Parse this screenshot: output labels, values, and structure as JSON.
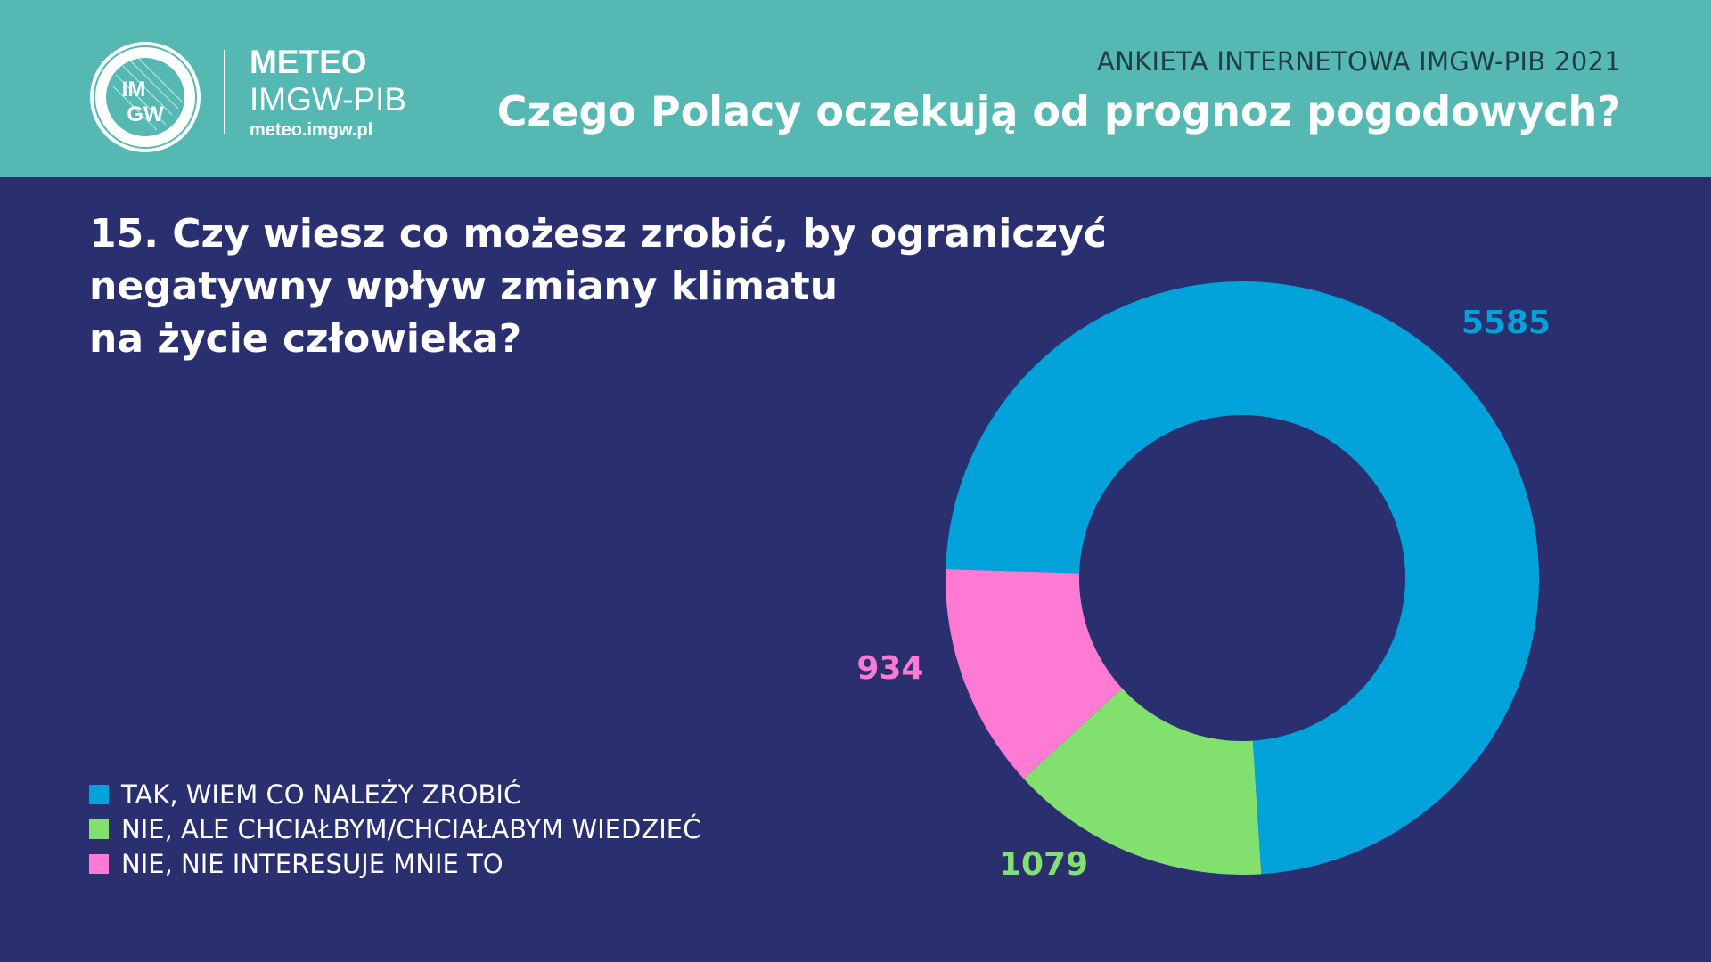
{
  "header": {
    "brand_title": "METEO",
    "brand_subtitle": "IMGW-PIB",
    "brand_url": "meteo.imgw.pl",
    "logo_text_top": "IM",
    "logo_text_bottom": "GW",
    "survey_label": "ANKIETA INTERNETOWA IMGW-PIB 2021",
    "main_title": "Czego Polacy oczekują od prognoz pogodowych?"
  },
  "question": {
    "lines": [
      "15. Czy wiesz co możesz zrobić, by ograniczyć",
      "negatywny wpływ zmiany klimatu",
      "na życie człowieka?"
    ]
  },
  "colors": {
    "header_bg": "#56b8b2",
    "page_bg": "#2a2f70",
    "tak": "#00a3d9",
    "nie_chce": "#82e06e",
    "nie_interesuje": "#ff7ad2"
  },
  "chart_data": {
    "type": "pie",
    "variant": "donut",
    "categories": [
      "TAK, WIEM CO NALEŻY ZROBIĆ",
      "NIE, ALE CHCIAŁBYM/CHCIAŁABYM WIEDZIEĆ",
      "NIE, NIE INTERESUJE MNIE TO"
    ],
    "values": [
      5585,
      1079,
      934
    ],
    "value_labels": [
      "5585",
      "1079",
      "934"
    ],
    "colors": [
      "#00a3d9",
      "#82e06e",
      "#ff7ad2"
    ],
    "legend_position": "bottom-left"
  }
}
